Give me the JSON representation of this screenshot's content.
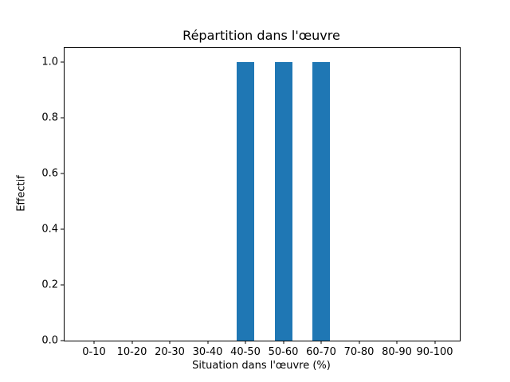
{
  "chart_data": {
    "type": "bar",
    "title": "Répartition dans l'œuvre",
    "xlabel": "Situation dans l'œuvre (%)",
    "ylabel": "Effectif",
    "categories": [
      "0-10",
      "10-20",
      "20-30",
      "30-40",
      "40-50",
      "50-60",
      "60-70",
      "70-80",
      "80-90",
      "90-100"
    ],
    "values": [
      0,
      0,
      0,
      0,
      1,
      1,
      1,
      0,
      0,
      0
    ],
    "ytick_labels": [
      "0.0",
      "0.2",
      "0.4",
      "0.6",
      "0.8",
      "1.0"
    ],
    "ylim": [
      0,
      1.05
    ],
    "bar_color": "#1f77b4",
    "grid": false,
    "legend": false
  }
}
